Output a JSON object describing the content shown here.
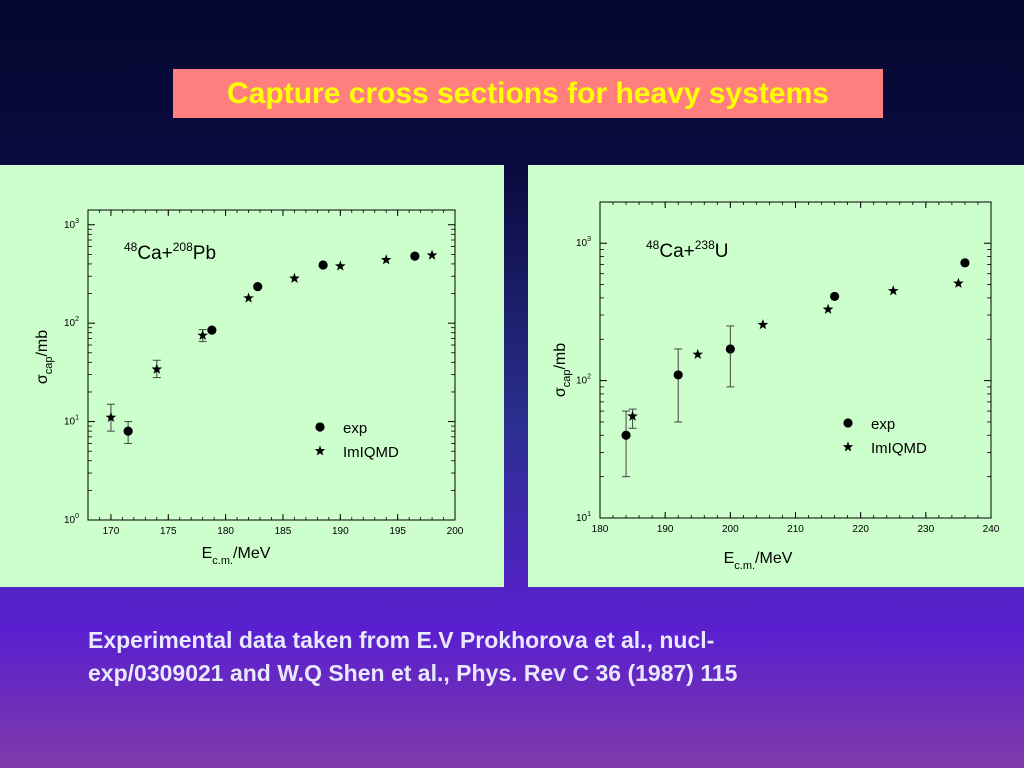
{
  "slide": {
    "title": "Capture cross sections for heavy systems",
    "caption_line1": "Experimental data taken from E.V Prokhorova et al., nucl-",
    "caption_line2": "exp/0309021 and W.Q Shen et al., Phys. Rev C 36 (1987) 115",
    "colors": {
      "title_bg": "#ff7f7f",
      "title_text": "#ffff00",
      "panel_bg": "#ccffcc",
      "caption_text": "#e8e8ff"
    }
  },
  "chart_data": [
    {
      "type": "scatter",
      "reaction": {
        "proj_mass": "48",
        "proj": "Ca+",
        "targ_mass": "208",
        "targ": "Pb"
      },
      "xlabel": {
        "main": "E",
        "sub": "c.m.",
        "rest": "/MeV"
      },
      "ylabel": {
        "main": "σ",
        "sub": "cap",
        "rest": "/mb"
      },
      "xlim": [
        168,
        200
      ],
      "ylim_log10": [
        0,
        3.15
      ],
      "yscale": "log",
      "xticks": [
        170,
        175,
        180,
        185,
        190,
        195,
        200
      ],
      "yticks_exp": [
        0,
        1,
        2,
        3
      ],
      "ytick_base": "10",
      "legend": {
        "position": "center-right",
        "items": [
          {
            "marker": "circle",
            "label": "exp"
          },
          {
            "marker": "star",
            "label": "ImIQMD"
          }
        ]
      },
      "series": [
        {
          "name": "exp",
          "marker": "circle",
          "points": [
            {
              "x": 171.5,
              "y": 8,
              "ylo": 6,
              "yhi": 10
            },
            {
              "x": 178.8,
              "y": 85
            },
            {
              "x": 182.8,
              "y": 235
            },
            {
              "x": 188.5,
              "y": 390
            },
            {
              "x": 196.5,
              "y": 480
            }
          ]
        },
        {
          "name": "ImIQMD",
          "marker": "star",
          "points": [
            {
              "x": 170,
              "y": 11,
              "ylo": 8,
              "yhi": 15
            },
            {
              "x": 174,
              "y": 34,
              "ylo": 28,
              "yhi": 42
            },
            {
              "x": 178,
              "y": 75,
              "ylo": 65,
              "yhi": 86
            },
            {
              "x": 182,
              "y": 180
            },
            {
              "x": 186,
              "y": 285
            },
            {
              "x": 190,
              "y": 380
            },
            {
              "x": 194,
              "y": 440
            },
            {
              "x": 198,
              "y": 490
            }
          ]
        }
      ]
    },
    {
      "type": "scatter",
      "reaction": {
        "proj_mass": "48",
        "proj": "Ca+",
        "targ_mass": "238",
        "targ": "U"
      },
      "xlabel": {
        "main": "E",
        "sub": "c.m.",
        "rest": "/MeV"
      },
      "ylabel": {
        "main": "σ",
        "sub": "cap",
        "rest": "/mb"
      },
      "xlim": [
        180,
        240
      ],
      "ylim_log10": [
        1,
        3.3
      ],
      "yscale": "log",
      "xticks": [
        180,
        190,
        200,
        210,
        220,
        230,
        240
      ],
      "yticks_exp": [
        1,
        2,
        3
      ],
      "ytick_base": "10",
      "legend": {
        "position": "center-right",
        "items": [
          {
            "marker": "circle",
            "label": "exp"
          },
          {
            "marker": "star",
            "label": "ImIQMD"
          }
        ]
      },
      "series": [
        {
          "name": "exp",
          "marker": "circle",
          "points": [
            {
              "x": 184,
              "y": 40,
              "ylo": 20,
              "yhi": 60
            },
            {
              "x": 192,
              "y": 110,
              "ylo": 50,
              "yhi": 170
            },
            {
              "x": 200,
              "y": 170,
              "ylo": 90,
              "yhi": 250
            },
            {
              "x": 216,
              "y": 410
            },
            {
              "x": 236,
              "y": 720
            }
          ]
        },
        {
          "name": "ImIQMD",
          "marker": "star",
          "points": [
            {
              "x": 185,
              "y": 55,
              "ylo": 45,
              "yhi": 62
            },
            {
              "x": 195,
              "y": 155
            },
            {
              "x": 205,
              "y": 255
            },
            {
              "x": 215,
              "y": 330
            },
            {
              "x": 225,
              "y": 450
            },
            {
              "x": 235,
              "y": 510
            }
          ]
        }
      ]
    }
  ]
}
